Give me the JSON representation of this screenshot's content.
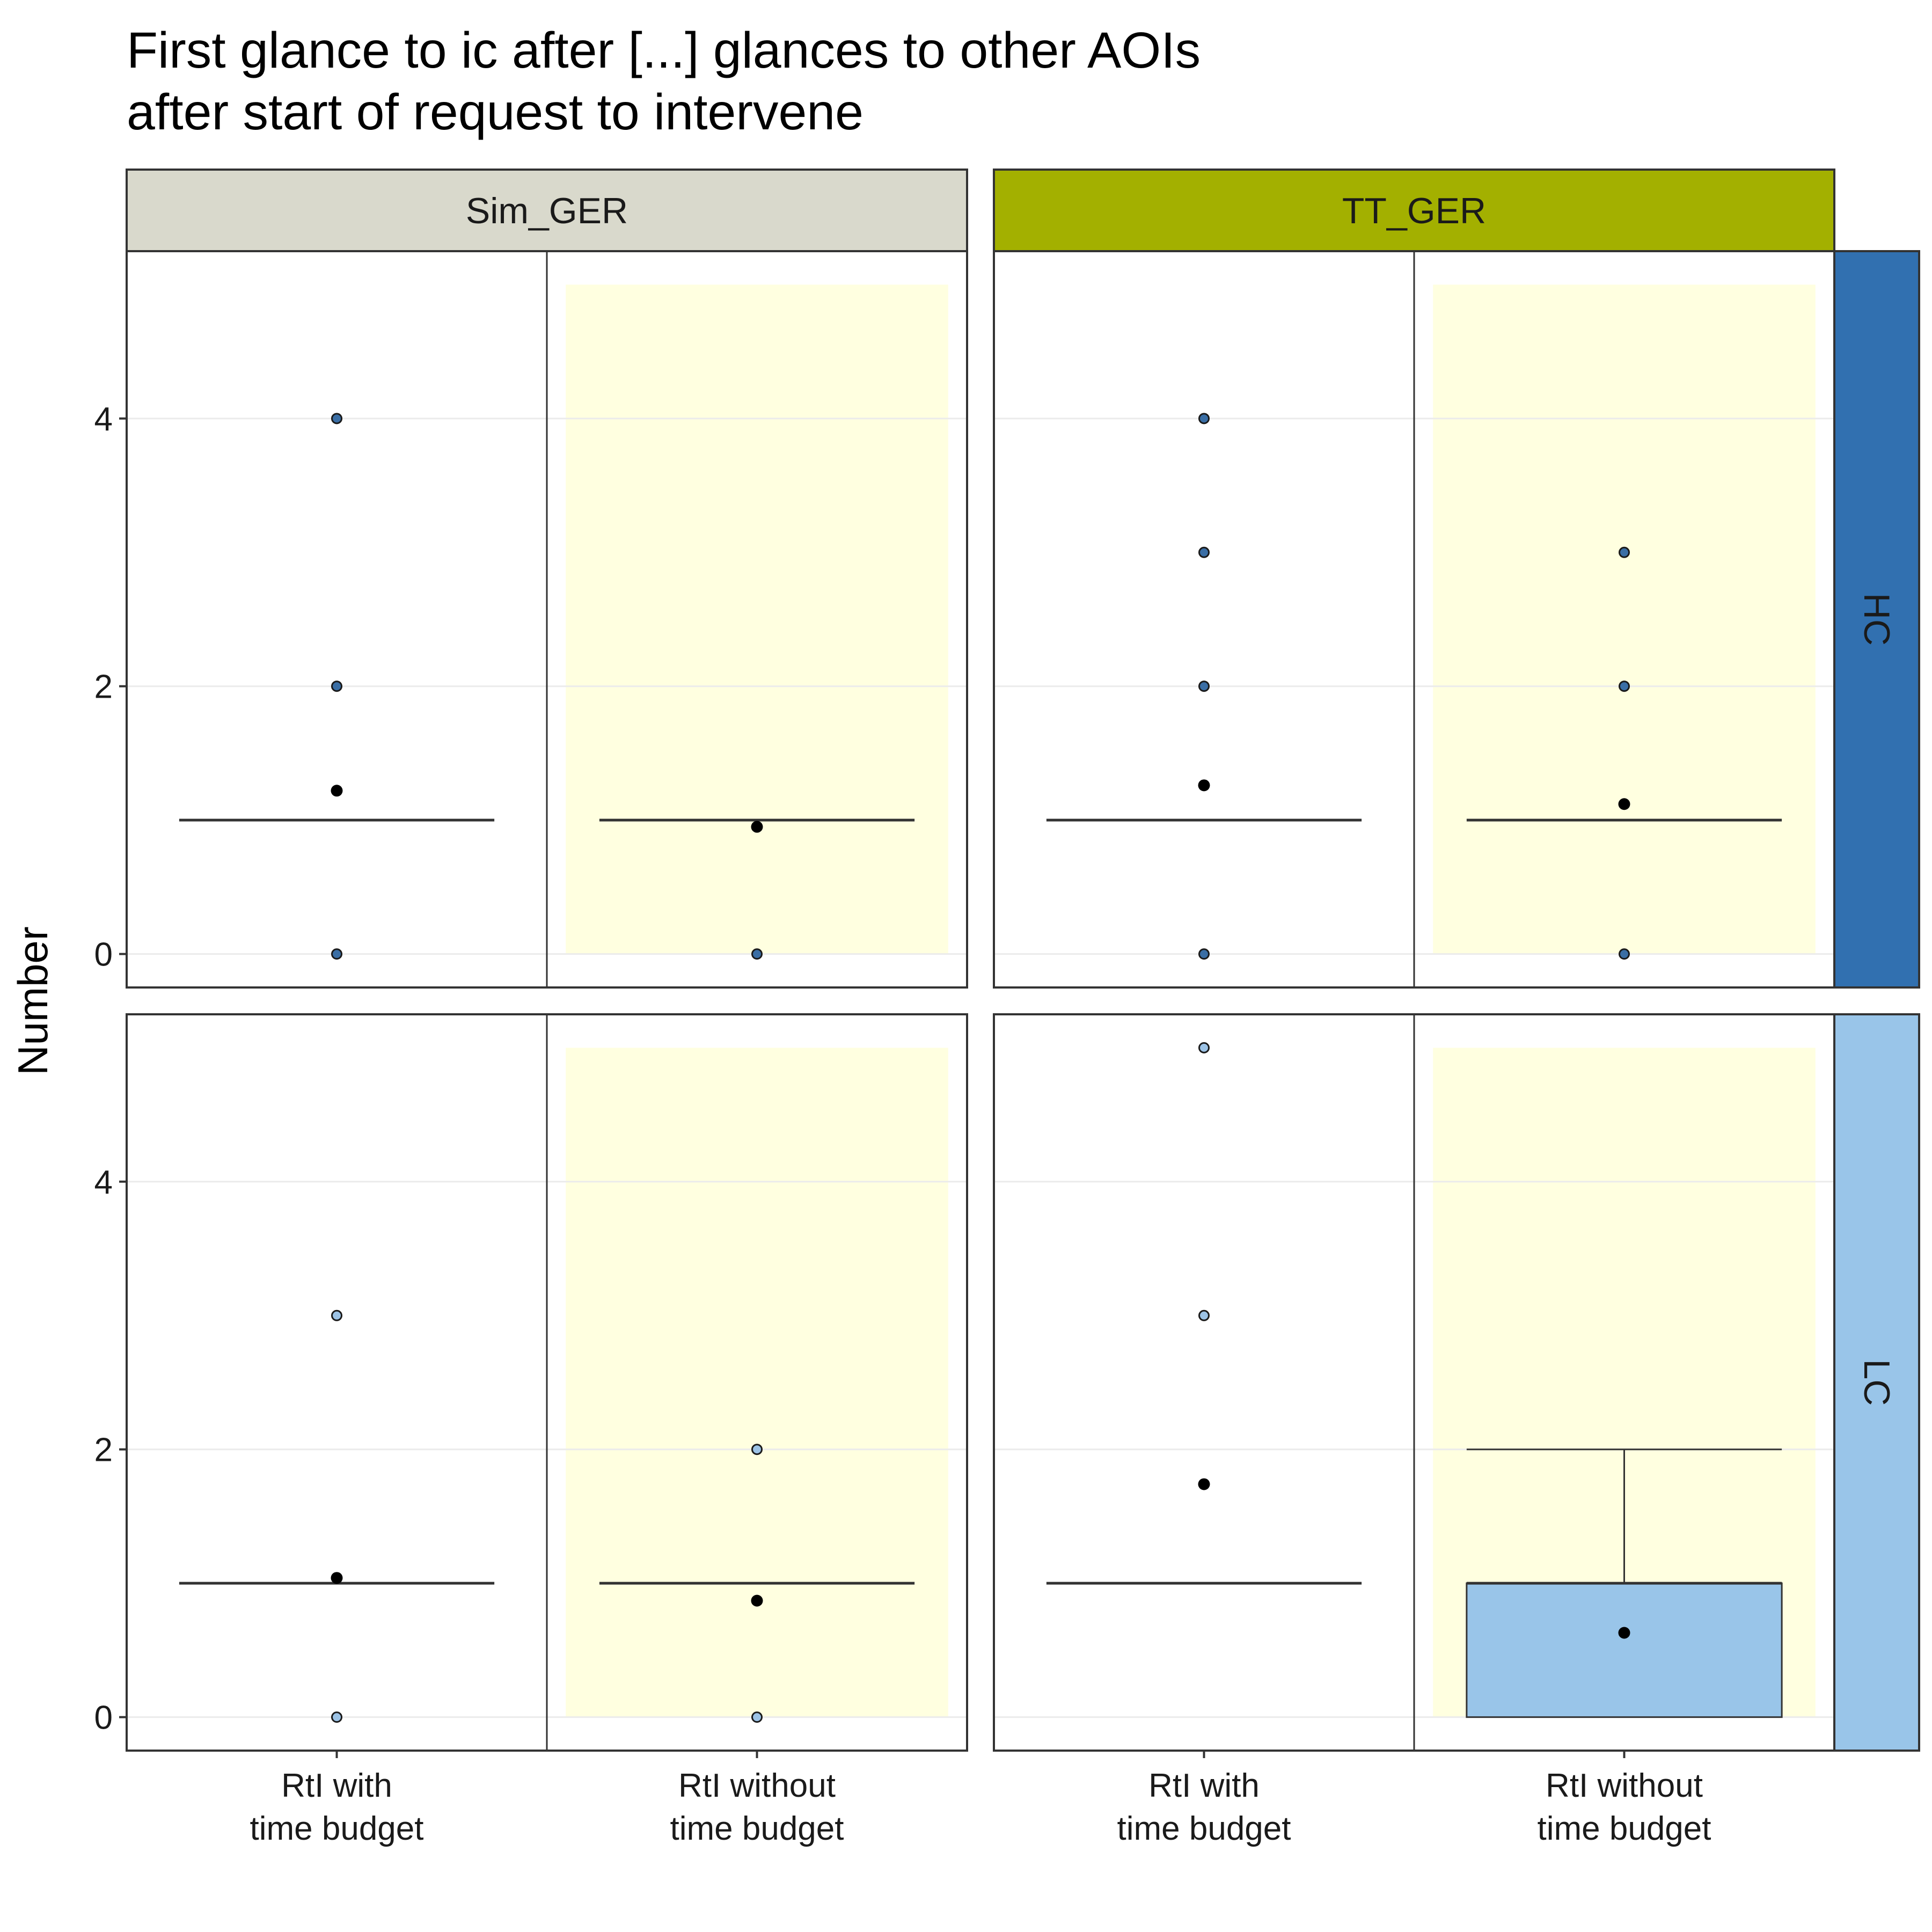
{
  "title": {
    "line1": "First glance to ic after [...] glances to other AOIs",
    "line2": "after start of request to intervene"
  },
  "colors": {
    "Sim_GER": "#d9d9cc",
    "TT_GER": "#a3b000",
    "HC": "#3170b0",
    "LC": "#99c5e9",
    "highlight": "#ffffe0",
    "grid": "#ebebeb",
    "border": "#333333",
    "point_fill_HC": "#3a6ea5",
    "point_fill_LC": "#9cc3e6",
    "mean_point": "#000000"
  },
  "chart_data": {
    "type": "boxplot",
    "facet_cols": [
      "Sim_GER",
      "TT_GER"
    ],
    "facet_rows": [
      "HC",
      "LC"
    ],
    "categories": [
      "RtI with\ntime budget",
      "RtI without\ntime budget"
    ],
    "category_lines": [
      [
        "RtI with",
        "time budget"
      ],
      [
        "RtI without",
        "time budget"
      ]
    ],
    "highlight_category": "RtI without\ntime budget",
    "ylabel": "Number",
    "xlabel": "",
    "y_ticks": [
      0,
      2,
      4
    ],
    "ylim": [
      -0.25,
      5.25
    ],
    "grid": true,
    "panels": [
      {
        "col": "Sim_GER",
        "row": "HC",
        "boxes": [
          {
            "category": "RtI with\ntime budget",
            "q1": 1,
            "median": 1,
            "q3": 1,
            "whisker_low": 1,
            "whisker_high": 1,
            "mean": 1.22,
            "outliers": [
              0,
              2,
              4
            ]
          },
          {
            "category": "RtI without\ntime budget",
            "q1": 1,
            "median": 1,
            "q3": 1,
            "whisker_low": 1,
            "whisker_high": 1,
            "mean": 0.95,
            "outliers": [
              0
            ]
          }
        ]
      },
      {
        "col": "TT_GER",
        "row": "HC",
        "boxes": [
          {
            "category": "RtI with\ntime budget",
            "q1": 1,
            "median": 1,
            "q3": 1,
            "whisker_low": 1,
            "whisker_high": 1,
            "mean": 1.26,
            "outliers": [
              0,
              2,
              3,
              4
            ]
          },
          {
            "category": "RtI without\ntime budget",
            "q1": 1,
            "median": 1,
            "q3": 1,
            "whisker_low": 1,
            "whisker_high": 1,
            "mean": 1.12,
            "outliers": [
              0,
              2,
              3
            ]
          }
        ]
      },
      {
        "col": "Sim_GER",
        "row": "LC",
        "boxes": [
          {
            "category": "RtI with\ntime budget",
            "q1": 1,
            "median": 1,
            "q3": 1,
            "whisker_low": 1,
            "whisker_high": 1,
            "mean": 1.04,
            "outliers": [
              0,
              3
            ]
          },
          {
            "category": "RtI without\ntime budget",
            "q1": 1,
            "median": 1,
            "q3": 1,
            "whisker_low": 1,
            "whisker_high": 1,
            "mean": 0.87,
            "outliers": [
              0,
              2
            ]
          }
        ]
      },
      {
        "col": "TT_GER",
        "row": "LC",
        "boxes": [
          {
            "category": "RtI with\ntime budget",
            "q1": 1,
            "median": 1,
            "q3": 1,
            "whisker_low": 1,
            "whisker_high": 1,
            "mean": 1.74,
            "outliers": [
              3,
              5
            ]
          },
          {
            "category": "RtI without\ntime budget",
            "q1": 0,
            "median": 1,
            "q3": 1,
            "whisker_low": 0,
            "whisker_high": 2,
            "mean": 0.63,
            "outliers": []
          }
        ]
      }
    ]
  }
}
